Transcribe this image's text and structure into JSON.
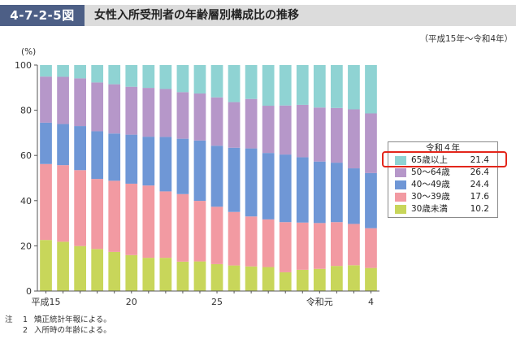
{
  "header": {
    "figure_number": "4-7-2-5図",
    "title": "女性入所受刑者の年齢層別構成比の推移"
  },
  "period_note": "（平成15年～令和4年）",
  "unit_label": "(%)",
  "legend": {
    "title": "令和４年",
    "items": [
      {
        "label": "65歳以上",
        "value": "21.4"
      },
      {
        "label": "50～64歳",
        "value": "26.4"
      },
      {
        "label": "40～49歳",
        "value": "24.4"
      },
      {
        "label": "30～39歳",
        "value": "17.6"
      },
      {
        "label": "30歳未満",
        "value": "10.2"
      }
    ]
  },
  "notes": {
    "mark": "注",
    "items": [
      {
        "num": "1",
        "text": "矯正統計年報による。"
      },
      {
        "num": "2",
        "text": "入所時の年齢による。"
      }
    ]
  },
  "colors": {
    "65歳以上": "#8fd3d3",
    "50～64歳": "#b697c9",
    "40～49歳": "#6f97d6",
    "30～39歳": "#f29aa2",
    "30歳未満": "#c8d65a",
    "header_box": "#4d5f86",
    "highlight": "#e3261b"
  },
  "chart_data": {
    "type": "bar",
    "stacked": true,
    "categories": [
      "平成15",
      "16",
      "17",
      "18",
      "19",
      "20",
      "21",
      "22",
      "23",
      "24",
      "25",
      "26",
      "27",
      "28",
      "29",
      "30",
      "令和元",
      "2",
      "3",
      "4"
    ],
    "x_tick_labels": [
      {
        "index": 0,
        "label": "平成15"
      },
      {
        "index": 5,
        "label": "20"
      },
      {
        "index": 10,
        "label": "25"
      },
      {
        "index": 16,
        "label": "令和元"
      },
      {
        "index": 19,
        "label": "4"
      }
    ],
    "ylabel": "(%)",
    "ylim": [
      0,
      100
    ],
    "yticks": [
      0,
      20,
      40,
      60,
      80,
      100
    ],
    "grid": false,
    "legend_position": "right",
    "series": [
      {
        "name": "30歳未満",
        "values": [
          22.6,
          21.8,
          19.9,
          18.6,
          17.3,
          15.9,
          14.7,
          14.7,
          13.0,
          13.1,
          11.9,
          11.3,
          10.9,
          10.6,
          8.3,
          9.4,
          9.8,
          11.1,
          11.4,
          10.2
        ]
      },
      {
        "name": "30～39歳",
        "values": [
          33.6,
          33.9,
          33.6,
          31.0,
          31.5,
          31.6,
          32.0,
          29.4,
          29.9,
          26.8,
          25.4,
          23.7,
          22.1,
          21.1,
          22.2,
          20.9,
          20.3,
          19.4,
          18.3,
          17.6
        ]
      },
      {
        "name": "40～49歳",
        "values": [
          18.3,
          18.2,
          19.5,
          21.1,
          20.9,
          21.7,
          21.6,
          24.1,
          24.5,
          26.7,
          27.0,
          28.4,
          30.1,
          29.4,
          29.9,
          28.9,
          27.2,
          26.3,
          24.6,
          24.4
        ]
      },
      {
        "name": "50～64歳",
        "values": [
          20.4,
          20.9,
          21.1,
          21.6,
          21.8,
          21.2,
          21.6,
          21.2,
          20.6,
          20.8,
          21.4,
          20.2,
          21.9,
          20.9,
          21.7,
          23.2,
          23.9,
          24.2,
          26.1,
          26.4
        ]
      },
      {
        "name": "65歳以上",
        "values": [
          5.1,
          5.2,
          5.9,
          7.7,
          8.5,
          9.6,
          10.1,
          10.6,
          12.0,
          12.6,
          14.3,
          16.4,
          15.0,
          18.0,
          17.9,
          17.6,
          18.8,
          19.0,
          19.6,
          21.4
        ]
      }
    ]
  }
}
